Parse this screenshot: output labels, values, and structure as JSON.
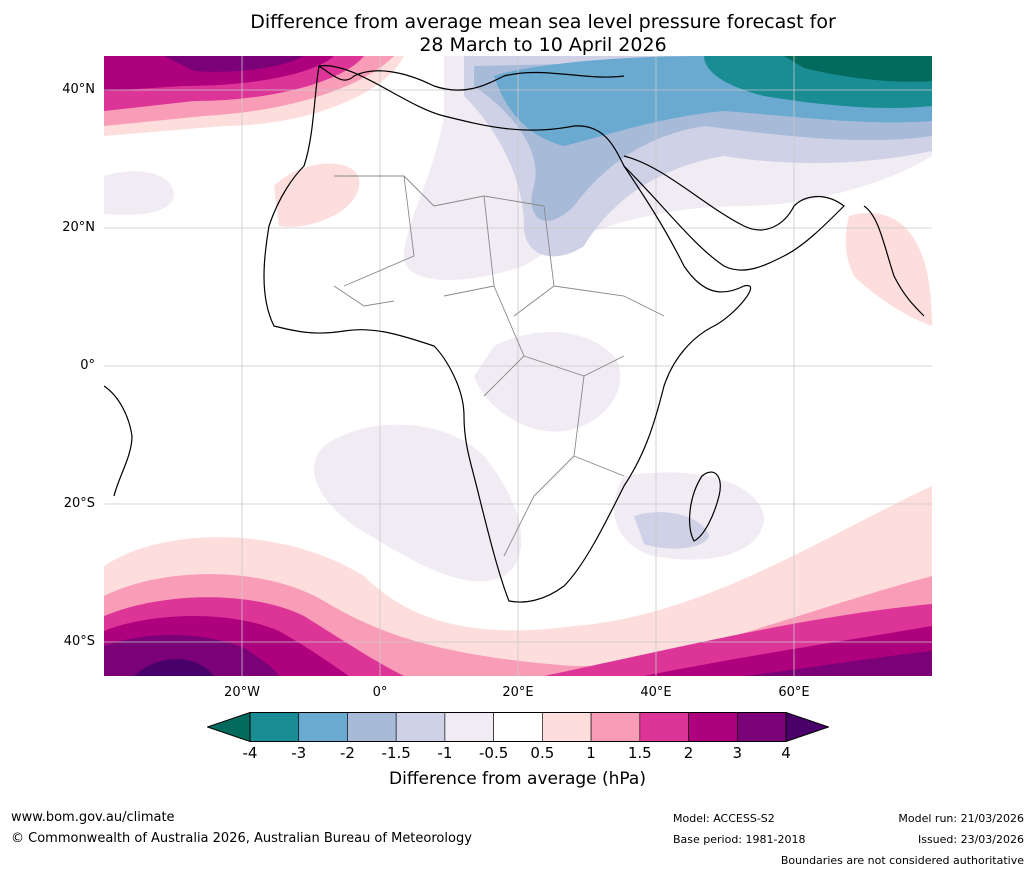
{
  "title": {
    "line1": "Difference from average mean sea level pressure forecast for",
    "line2": "28 March to 10 April 2026"
  },
  "map": {
    "lat_labels": [
      "40°N",
      "20°N",
      "0°",
      "20°S",
      "40°S"
    ],
    "lon_labels": [
      "20°W",
      "0°",
      "20°E",
      "40°E",
      "60°E"
    ]
  },
  "colorbar": {
    "title": "Difference from average (hPa)",
    "ticks": [
      "-4",
      "-3",
      "-2",
      "-1.5",
      "-1",
      "-0.5",
      "0.5",
      "1",
      "1.5",
      "2",
      "3",
      "4"
    ],
    "colors": {
      "below_min": "#036b5d",
      "c_m4_m3": "#1a8c94",
      "c_m3_m2": "#6aa9d0",
      "c_m2_m15": "#a7bbd9",
      "c_m15_m1": "#cfd1e6",
      "c_m1_m05": "#f1ecf4",
      "c_m05_05": "#ffffff",
      "c_05_1": "#fddedd",
      "c_1_15": "#f99cb8",
      "c_15_2": "#dd3497",
      "c_2_3": "#ae017e",
      "c_3_4": "#7a0177",
      "above_max": "#49006a"
    }
  },
  "footer": {
    "website": "www.bom.gov.au/climate",
    "copyright": "© Commonwealth of Australia 2026, Australian Bureau of Meteorology",
    "model": "Model: ACCESS-S2",
    "base_period": "Base period: 1981-2018",
    "model_run": "Model run: 21/03/2026",
    "issued": "Issued: 23/03/2026",
    "disclaimer": "Boundaries are not considered authoritative"
  }
}
